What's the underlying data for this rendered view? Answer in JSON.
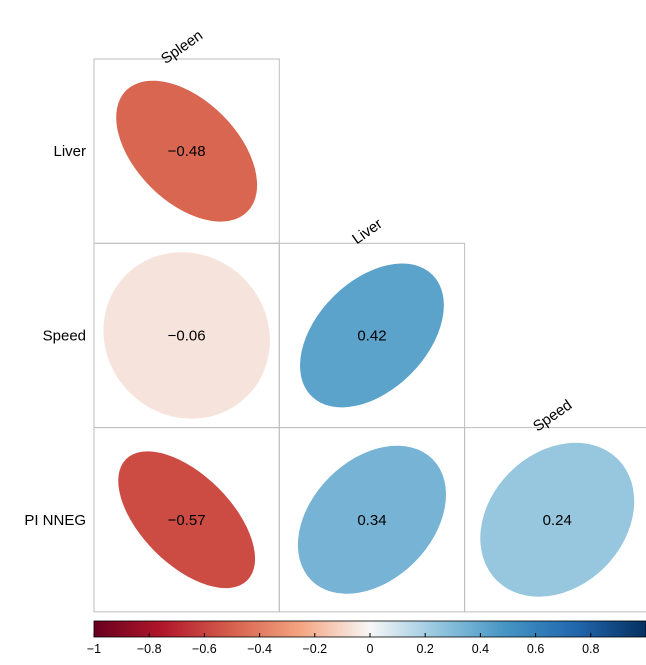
{
  "chart_data": {
    "type": "heatmap",
    "style": "correlation-ellipse-lower-triangle",
    "columns": [
      "Spleen",
      "Liver",
      "Speed"
    ],
    "rows": [
      "Liver",
      "Speed",
      "PI NNEG"
    ],
    "cells": [
      {
        "row": "Liver",
        "col": "Spleen",
        "value": -0.48,
        "label": "−0.48"
      },
      {
        "row": "Speed",
        "col": "Spleen",
        "value": -0.06,
        "label": "−0.06"
      },
      {
        "row": "Speed",
        "col": "Liver",
        "value": 0.42,
        "label": "0.42"
      },
      {
        "row": "PI NNEG",
        "col": "Spleen",
        "value": -0.57,
        "label": "−0.57"
      },
      {
        "row": "PI NNEG",
        "col": "Liver",
        "value": 0.34,
        "label": "0.34"
      },
      {
        "row": "PI NNEG",
        "col": "Speed",
        "value": 0.24,
        "label": "0.24"
      }
    ],
    "colorbar": {
      "range": [
        -1,
        1
      ],
      "tick_values": [
        -1,
        -0.8,
        -0.6,
        -0.4,
        -0.2,
        0,
        0.2,
        0.4,
        0.6,
        0.8
      ],
      "tick_labels": [
        "−1",
        "−0.8",
        "−0.6",
        "−0.4",
        "−0.2",
        "0",
        "0.2",
        "0.4",
        "0.6",
        "0.8"
      ],
      "colors": {
        "-1": "#67001f",
        "-0.75": "#b2182b",
        "-0.5": "#d6604d",
        "-0.25": "#f4a582",
        "0": "#f7f7f7",
        "0.25": "#92c5de",
        "0.5": "#4393c3",
        "0.75": "#2166ac",
        "1": "#053061"
      },
      "position": "bottom"
    },
    "grid": true,
    "title": ""
  }
}
